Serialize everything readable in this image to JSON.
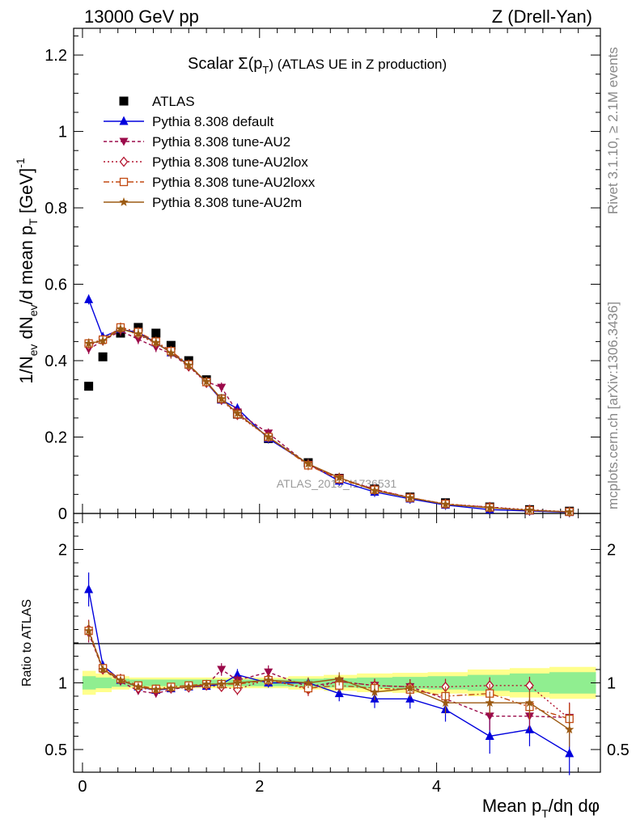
{
  "header": {
    "left": "13000 GeV pp",
    "right": "Z (Drell-Yan)"
  },
  "side_labels": {
    "rivet": "Rivet 3.1.10, ≥ 2.1M events",
    "mcplots": "mcplots.cern.ch [arXiv:1306.3436]"
  },
  "watermark": "ATLAS_2019_I1736531",
  "main_panel": {
    "title_prefix": "Scalar Σ(p",
    "title_sub": "T",
    "title_suffix": ") (ATLAS UE in Z production)",
    "ylabel": "1/N_ev dN_ev/d mean p_T [GeV]^-1"
  },
  "ratio_panel": {
    "ylabel": "Ratio to ATLAS"
  },
  "xlabel": "Mean p_T/dη dφ",
  "legend": [
    {
      "label": "ATLAS",
      "color": "#000000",
      "marker": "square-filled",
      "dash": ""
    },
    {
      "label": "Pythia 8.308 default",
      "color": "#0000dd",
      "marker": "triangle-up",
      "dash": ""
    },
    {
      "label": "Pythia 8.308 tune-AU2",
      "color": "#9b0a4a",
      "marker": "triangle-down",
      "dash": "4,3"
    },
    {
      "label": "Pythia 8.308 tune-AU2lox",
      "color": "#b3132e",
      "marker": "diamond-open",
      "dash": "2,3"
    },
    {
      "label": "Pythia 8.308 tune-AU2loxx",
      "color": "#c24a12",
      "marker": "square-open",
      "dash": "7,3,2,3"
    },
    {
      "label": "Pythia 8.308 tune-AU2m",
      "color": "#9c5a12",
      "marker": "star",
      "dash": ""
    }
  ],
  "chart_data": [
    {
      "type": "scatter",
      "panel": "main",
      "x": [
        0.07,
        0.23,
        0.43,
        0.63,
        0.83,
        1.0,
        1.2,
        1.4,
        1.57,
        1.75,
        2.1,
        2.55,
        2.9,
        3.3,
        3.7,
        4.1,
        4.6,
        5.05,
        5.5
      ],
      "xlim": [
        -0.1,
        5.85
      ],
      "ylim": [
        0,
        1.27
      ],
      "yticks": [
        0,
        0.2,
        0.4,
        0.6,
        0.8,
        1,
        1.2
      ],
      "yticklabels": [
        "0",
        "0.2",
        "0.4",
        "0.6",
        "0.8",
        "1",
        "1.2"
      ],
      "xticks": [
        0,
        2,
        4
      ],
      "xticklabels": [
        "0",
        "2",
        "4"
      ],
      "series": [
        {
          "name": "ATLAS",
          "values": [
            0.333,
            0.41,
            0.472,
            0.487,
            0.472,
            0.44,
            0.4,
            0.35,
            0.3,
            0.26,
            0.196,
            0.133,
            0.092,
            0.064,
            0.043,
            0.028,
            0.017,
            0.01,
            0.006
          ]
        },
        {
          "name": "Pythia 8.308 default",
          "values": [
            0.56,
            0.462,
            0.482,
            0.474,
            0.447,
            0.421,
            0.389,
            0.343,
            0.297,
            0.275,
            0.196,
            0.13,
            0.085,
            0.056,
            0.038,
            0.022,
            0.01,
            0.0065,
            0.0028
          ]
        },
        {
          "name": "Pythia 8.308 tune-AU2",
          "values": [
            0.43,
            0.452,
            0.478,
            0.456,
            0.435,
            0.418,
            0.385,
            0.345,
            0.33,
            0.265,
            0.21,
            0.128,
            0.093,
            0.063,
            0.042,
            0.024,
            0.0168,
            0.0076,
            0.0043
          ]
        },
        {
          "name": "Pythia 8.308 tune-AU2lox",
          "values": [
            0.44,
            0.453,
            0.485,
            0.468,
            0.445,
            0.422,
            0.385,
            0.342,
            0.298,
            0.258,
            0.2,
            0.128,
            0.092,
            0.063,
            0.041,
            0.025,
            0.0168,
            0.0098,
            0.0044
          ]
        },
        {
          "name": "Pythia 8.308 tune-AU2loxx",
          "values": [
            0.445,
            0.455,
            0.487,
            0.475,
            0.45,
            0.425,
            0.39,
            0.344,
            0.3,
            0.26,
            0.2,
            0.126,
            0.09,
            0.062,
            0.041,
            0.025,
            0.0155,
            0.0082,
            0.0043
          ]
        },
        {
          "name": "Pythia 8.308 tune-AU2m",
          "values": [
            0.445,
            0.452,
            0.483,
            0.47,
            0.447,
            0.42,
            0.388,
            0.345,
            0.3,
            0.262,
            0.2,
            0.13,
            0.094,
            0.06,
            0.041,
            0.024,
            0.0145,
            0.0085,
            0.0039
          ]
        }
      ]
    },
    {
      "type": "line",
      "panel": "ratio",
      "x": [
        0.07,
        0.23,
        0.43,
        0.63,
        0.83,
        1.0,
        1.2,
        1.4,
        1.57,
        1.75,
        2.1,
        2.55,
        2.9,
        3.3,
        3.7,
        4.1,
        4.6,
        5.05,
        5.5
      ],
      "xlim": [
        -0.1,
        5.85
      ],
      "ylim": [
        0.33,
        2.27
      ],
      "yticks": [
        0.5,
        1,
        2
      ],
      "yticklabels": [
        "0.5",
        "1",
        "2"
      ],
      "reference": 1,
      "band_inner": [
        0.05,
        0.04,
        0.03,
        0.025,
        0.025,
        0.025,
        0.025,
        0.025,
        0.025,
        0.025,
        0.025,
        0.03,
        0.035,
        0.04,
        0.045,
        0.05,
        0.06,
        0.07,
        0.08
      ],
      "band_outer": [
        0.09,
        0.07,
        0.05,
        0.04,
        0.04,
        0.04,
        0.04,
        0.04,
        0.04,
        0.04,
        0.04,
        0.05,
        0.06,
        0.07,
        0.075,
        0.08,
        0.1,
        0.11,
        0.12
      ],
      "series": [
        {
          "name": "Pythia 8.308 default",
          "values": [
            1.7,
            1.13,
            1.02,
            0.97,
            0.945,
            0.957,
            0.97,
            0.975,
            0.99,
            1.06,
            1.0,
            1.0,
            0.92,
            0.88,
            0.88,
            0.8,
            0.6,
            0.65,
            0.47
          ]
        },
        {
          "name": "Pythia 8.308 tune-AU2",
          "values": [
            1.37,
            1.1,
            1.01,
            0.94,
            0.92,
            0.95,
            0.97,
            0.98,
            1.1,
            1.02,
            1.08,
            0.97,
            1.01,
            0.98,
            0.97,
            0.88,
            0.75,
            0.75,
            0.74
          ]
        },
        {
          "name": "Pythia 8.308 tune-AU2lox",
          "values": [
            1.4,
            1.1,
            1.03,
            0.96,
            0.95,
            0.96,
            0.965,
            0.98,
            0.97,
            0.95,
            1.03,
            0.95,
            1.01,
            0.98,
            0.97,
            0.97,
            0.98,
            0.98,
            0.73
          ]
        },
        {
          "name": "Pythia 8.308 tune-AU2loxx",
          "values": [
            1.39,
            1.11,
            1.03,
            0.98,
            0.955,
            0.97,
            0.98,
            0.99,
            0.99,
            0.99,
            1.02,
            0.96,
            0.98,
            0.96,
            0.95,
            0.9,
            0.92,
            0.82,
            0.73
          ]
        },
        {
          "name": "Pythia 8.308 tune-AU2m",
          "values": [
            1.39,
            1.1,
            1.02,
            0.97,
            0.95,
            0.96,
            0.97,
            0.99,
            0.99,
            1.0,
            1.02,
            1.0,
            1.03,
            0.93,
            0.96,
            0.85,
            0.85,
            0.85,
            0.65
          ]
        }
      ]
    }
  ]
}
